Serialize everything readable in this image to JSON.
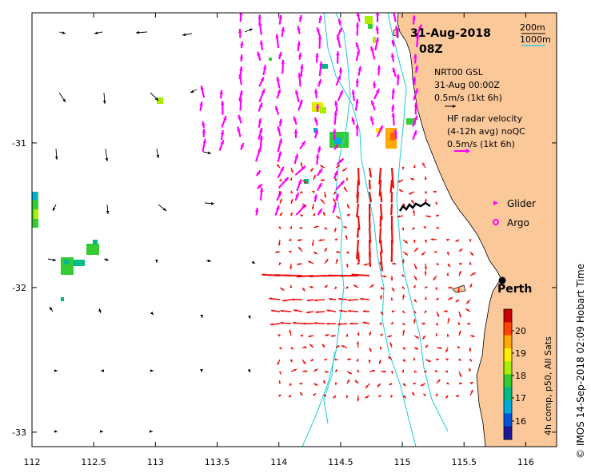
{
  "map": {
    "title_date": "31-Aug-2018",
    "title_time": "08Z",
    "lon_range": [
      112,
      116.25
    ],
    "lat_range": [
      -33.1,
      -30.1
    ],
    "x_ticks": [
      {
        "value": 112,
        "label": "112"
      },
      {
        "value": 112.5,
        "label": "112.5"
      },
      {
        "value": 113,
        "label": "113"
      },
      {
        "value": 113.5,
        "label": "113.5"
      },
      {
        "value": 114,
        "label": "114"
      },
      {
        "value": 114.5,
        "label": "114.5"
      },
      {
        "value": 115,
        "label": "115"
      },
      {
        "value": 115.5,
        "label": "115.5"
      },
      {
        "value": 116,
        "label": "116"
      }
    ],
    "y_ticks": [
      {
        "value": -31,
        "label": "-31"
      },
      {
        "value": -32,
        "label": "-32"
      },
      {
        "value": -33,
        "label": "-33"
      }
    ],
    "colors": {
      "land": "#fbc89a",
      "bathymetry": "#2ecfd8",
      "hf_radar": "#ee1111",
      "gsl_vector": "#000000",
      "glider_argo": "#ff00ff"
    }
  },
  "legend": {
    "contour_200": "200m",
    "contour_1000": "1000m",
    "gsl_line1": "NRT00 GSL",
    "gsl_line2": "31-Aug 00:00Z",
    "gsl_scale": "0.5m/s (1kt 6h)",
    "hf_line1": "HF radar velocity",
    "hf_line2": "(4-12h avg) noQC",
    "hf_scale": "0.5m/s (1kt 6h)",
    "glider": "Glider",
    "argo": "Argo"
  },
  "place": {
    "name": "Perth",
    "lon": 115.87,
    "lat": -31.95
  },
  "colorbar": {
    "label": "4h comp, p50, All Sats",
    "ticks": [
      "20",
      "19",
      "18",
      "17",
      "16"
    ],
    "colors": [
      "#cc0000",
      "#ff4400",
      "#ffaa00",
      "#ffee00",
      "#aaee00",
      "#33cc33",
      "#00bb88",
      "#00aadd",
      "#0055dd",
      "#1a1a9a"
    ]
  },
  "credit": "© IMOS 14-Sep-2018 02:09 Hobart Time"
}
